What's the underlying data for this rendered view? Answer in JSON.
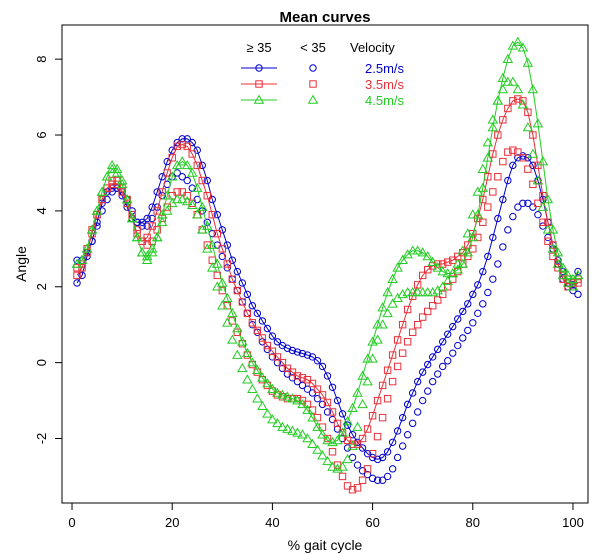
{
  "chart_data": {
    "type": "line",
    "title": "Mean curves",
    "xlabel": "% gait cycle",
    "ylabel": "Angle",
    "xlim": [
      -2,
      103
    ],
    "ylim": [
      -3.7,
      8.9
    ],
    "x_ticks": [
      0,
      20,
      40,
      60,
      80,
      100
    ],
    "x_tick_labels": [
      "0",
      "20",
      "40",
      "60",
      "80",
      "100"
    ],
    "y_ticks": [
      -2,
      0,
      2,
      4,
      6,
      8
    ],
    "y_tick_labels": [
      "-2",
      "0",
      "2",
      "4",
      "6",
      "8"
    ],
    "legend": {
      "placement": "top-center",
      "header": [
        "≥ 35",
        "< 35",
        "Velocity"
      ],
      "labels": [
        "2.5m/s",
        "3.5m/s",
        "4.5m/s"
      ]
    },
    "colors": {
      "v25": "#0000cc",
      "v35": "#e8303a",
      "v45": "#22cc22"
    },
    "x": [
      1,
      2,
      3,
      4,
      5,
      6,
      7,
      8,
      9,
      10,
      11,
      12,
      13,
      14,
      15,
      16,
      17,
      18,
      19,
      20,
      21,
      22,
      23,
      24,
      25,
      26,
      27,
      28,
      29,
      30,
      31,
      32,
      33,
      34,
      35,
      36,
      37,
      38,
      39,
      40,
      41,
      42,
      43,
      44,
      45,
      46,
      47,
      48,
      49,
      50,
      51,
      52,
      53,
      54,
      55,
      56,
      57,
      58,
      59,
      60,
      61,
      62,
      63,
      64,
      65,
      66,
      67,
      68,
      69,
      70,
      71,
      72,
      73,
      74,
      75,
      76,
      77,
      78,
      79,
      80,
      81,
      82,
      83,
      84,
      85,
      86,
      87,
      88,
      89,
      90,
      91,
      92,
      93,
      94,
      95,
      96,
      97,
      98,
      99,
      100,
      101
    ],
    "series": [
      {
        "velocity": "2.5m/s",
        "group": "≥ 35",
        "marker": "circle",
        "connected": true,
        "color": "#0000cc",
        "values": [
          2.1,
          2.3,
          2.8,
          3.2,
          3.7,
          4.2,
          4.5,
          4.6,
          4.6,
          4.4,
          4.1,
          3.8,
          3.7,
          3.7,
          3.8,
          4.1,
          4.5,
          4.9,
          5.3,
          5.6,
          5.8,
          5.9,
          5.9,
          5.8,
          5.6,
          5.2,
          4.8,
          4.3,
          3.9,
          3.5,
          3.1,
          2.7,
          2.4,
          2.1,
          1.8,
          1.5,
          1.3,
          1.1,
          0.9,
          0.7,
          0.55,
          0.45,
          0.38,
          0.32,
          0.28,
          0.24,
          0.2,
          0.15,
          0.05,
          -0.1,
          -0.35,
          -0.65,
          -1.0,
          -1.35,
          -1.65,
          -1.9,
          -2.1,
          -2.25,
          -2.4,
          -2.5,
          -2.55,
          -2.5,
          -2.35,
          -2.1,
          -1.8,
          -1.45,
          -1.1,
          -0.8,
          -0.5,
          -0.25,
          -0.05,
          0.15,
          0.35,
          0.55,
          0.75,
          0.95,
          1.15,
          1.35,
          1.55,
          1.8,
          2.05,
          2.4,
          2.8,
          3.3,
          3.8,
          4.3,
          4.8,
          5.2,
          5.4,
          5.45,
          5.4,
          5.2,
          4.8,
          4.3,
          3.7,
          3.1,
          2.6,
          2.2,
          2.0,
          2.05,
          2.4
        ]
      },
      {
        "velocity": "2.5m/s",
        "group": "< 35",
        "marker": "circle",
        "connected": false,
        "color": "#0000cc",
        "values": [
          2.7,
          2.7,
          2.9,
          3.2,
          3.6,
          4.0,
          4.3,
          4.5,
          4.6,
          4.5,
          4.3,
          4.0,
          3.7,
          3.6,
          3.6,
          3.8,
          4.1,
          4.4,
          4.7,
          4.9,
          5.0,
          4.9,
          4.8,
          4.6,
          4.3,
          4.0,
          3.7,
          3.4,
          3.1,
          2.8,
          2.5,
          2.2,
          1.9,
          1.6,
          1.3,
          1.0,
          0.8,
          0.55,
          0.35,
          0.15,
          0.0,
          -0.15,
          -0.3,
          -0.4,
          -0.5,
          -0.6,
          -0.7,
          -0.8,
          -0.95,
          -1.1,
          -1.3,
          -1.5,
          -1.75,
          -2.0,
          -2.25,
          -2.5,
          -2.7,
          -2.85,
          -2.95,
          -3.05,
          -3.1,
          -3.1,
          -3.0,
          -2.8,
          -2.5,
          -2.2,
          -1.9,
          -1.6,
          -1.3,
          -1.0,
          -0.75,
          -0.5,
          -0.3,
          -0.1,
          0.05,
          0.25,
          0.45,
          0.65,
          0.85,
          1.05,
          1.3,
          1.55,
          1.85,
          2.2,
          2.6,
          3.05,
          3.5,
          3.85,
          4.1,
          4.2,
          4.2,
          4.1,
          3.9,
          3.6,
          3.3,
          3.0,
          2.7,
          2.4,
          2.1,
          1.9,
          1.8
        ]
      },
      {
        "velocity": "3.5m/s",
        "group": "≥ 35",
        "marker": "square",
        "connected": true,
        "color": "#e8303a",
        "values": [
          2.3,
          2.5,
          2.9,
          3.4,
          3.9,
          4.3,
          4.6,
          4.7,
          4.7,
          4.5,
          4.2,
          3.8,
          3.4,
          3.2,
          3.3,
          3.6,
          4.0,
          4.5,
          5.0,
          5.4,
          5.7,
          5.75,
          5.7,
          5.5,
          5.2,
          4.8,
          4.4,
          3.9,
          3.4,
          3.0,
          2.6,
          2.2,
          1.9,
          1.6,
          1.3,
          1.05,
          0.85,
          0.65,
          0.45,
          0.3,
          0.15,
          0.0,
          -0.15,
          -0.25,
          -0.35,
          -0.4,
          -0.45,
          -0.55,
          -0.7,
          -0.85,
          -1.05,
          -1.3,
          -1.6,
          -1.85,
          -2.05,
          -2.15,
          -2.15,
          -2.0,
          -1.75,
          -1.4,
          -1.0,
          -0.6,
          -0.2,
          0.2,
          0.6,
          1.0,
          1.4,
          1.75,
          2.05,
          2.3,
          2.45,
          2.55,
          2.6,
          2.6,
          2.65,
          2.7,
          2.8,
          2.9,
          3.1,
          3.4,
          3.8,
          4.3,
          4.9,
          5.5,
          6.0,
          6.4,
          6.7,
          6.9,
          6.95,
          6.9,
          6.6,
          6.0,
          5.2,
          4.4,
          3.7,
          3.1,
          2.6,
          2.2,
          2.0,
          2.0,
          2.1
        ]
      },
      {
        "velocity": "3.5m/s",
        "group": "< 35",
        "marker": "square",
        "connected": false,
        "color": "#e8303a",
        "values": [
          2.5,
          2.6,
          3.0,
          3.5,
          3.9,
          4.3,
          4.6,
          4.8,
          4.8,
          4.6,
          4.3,
          3.9,
          3.5,
          3.2,
          3.1,
          3.2,
          3.5,
          3.8,
          4.1,
          4.4,
          4.5,
          4.5,
          4.4,
          4.2,
          3.9,
          3.5,
          3.1,
          2.7,
          2.3,
          1.9,
          1.5,
          1.1,
          0.8,
          0.5,
          0.2,
          -0.05,
          -0.25,
          -0.45,
          -0.6,
          -0.75,
          -0.85,
          -0.9,
          -0.95,
          -0.95,
          -0.95,
          -1.0,
          -1.1,
          -1.25,
          -1.45,
          -1.7,
          -2.0,
          -2.35,
          -2.7,
          -3.0,
          -3.25,
          -3.35,
          -3.3,
          -3.1,
          -2.8,
          -2.4,
          -1.95,
          -1.45,
          -0.95,
          -0.5,
          -0.1,
          0.25,
          0.55,
          0.8,
          1.0,
          1.2,
          1.35,
          1.5,
          1.65,
          1.8,
          2.0,
          2.2,
          2.4,
          2.6,
          2.8,
          3.0,
          3.3,
          3.7,
          4.1,
          4.5,
          4.9,
          5.3,
          5.55,
          5.6,
          5.55,
          5.4,
          5.1,
          4.7,
          4.2,
          3.7,
          3.2,
          2.8,
          2.5,
          2.3,
          2.2,
          2.1,
          2.2
        ]
      },
      {
        "velocity": "4.5m/s",
        "group": "≥ 35",
        "marker": "triangle",
        "connected": true,
        "color": "#22cc22",
        "values": [
          2.6,
          2.7,
          3.0,
          3.5,
          4.0,
          4.5,
          4.9,
          5.1,
          5.0,
          4.7,
          4.3,
          3.8,
          3.3,
          2.9,
          2.7,
          2.9,
          3.3,
          3.9,
          4.4,
          4.9,
          5.2,
          5.3,
          5.2,
          5.0,
          4.6,
          4.1,
          3.6,
          3.1,
          2.6,
          2.1,
          1.7,
          1.3,
          0.9,
          0.55,
          0.25,
          0.0,
          -0.2,
          -0.4,
          -0.55,
          -0.7,
          -0.8,
          -0.85,
          -0.9,
          -0.95,
          -1.0,
          -1.1,
          -1.25,
          -1.45,
          -1.7,
          -1.9,
          -2.05,
          -2.1,
          -2.05,
          -1.85,
          -1.55,
          -1.2,
          -0.8,
          -0.35,
          0.1,
          0.55,
          1.0,
          1.45,
          1.85,
          2.2,
          2.5,
          2.7,
          2.85,
          2.95,
          2.95,
          2.9,
          2.8,
          2.65,
          2.5,
          2.4,
          2.35,
          2.35,
          2.45,
          2.6,
          2.9,
          3.3,
          3.9,
          4.6,
          5.4,
          6.2,
          6.9,
          7.5,
          8.0,
          8.35,
          8.45,
          8.3,
          7.9,
          7.2,
          6.3,
          5.3,
          4.3,
          3.5,
          2.9,
          2.5,
          2.3,
          2.2,
          2.3
        ]
      },
      {
        "velocity": "4.5m/s",
        "group": "< 35",
        "marker": "triangle",
        "connected": false,
        "color": "#22cc22",
        "values": [
          2.6,
          2.7,
          3.0,
          3.5,
          4.0,
          4.5,
          4.9,
          5.2,
          5.1,
          4.8,
          4.3,
          3.8,
          3.3,
          2.9,
          2.8,
          3.0,
          3.3,
          3.7,
          4.0,
          4.2,
          4.3,
          4.3,
          4.25,
          4.15,
          3.9,
          3.5,
          3.0,
          2.5,
          2.0,
          1.5,
          1.05,
          0.6,
          0.2,
          -0.15,
          -0.45,
          -0.7,
          -0.95,
          -1.15,
          -1.35,
          -1.5,
          -1.6,
          -1.7,
          -1.75,
          -1.8,
          -1.85,
          -1.9,
          -2.0,
          -2.15,
          -2.3,
          -2.45,
          -2.6,
          -2.75,
          -2.8,
          -2.75,
          -2.55,
          -2.2,
          -1.7,
          -1.1,
          -0.5,
          0.1,
          0.6,
          1.0,
          1.3,
          1.55,
          1.7,
          1.8,
          1.85,
          1.85,
          1.85,
          1.85,
          1.85,
          1.85,
          1.9,
          2.0,
          2.15,
          2.35,
          2.6,
          2.95,
          3.4,
          3.9,
          4.5,
          5.1,
          5.8,
          6.4,
          6.9,
          7.2,
          7.4,
          7.4,
          7.2,
          6.8,
          6.2,
          5.5,
          4.8,
          4.1,
          3.5,
          3.0,
          2.6,
          2.3,
          2.1,
          2.0,
          2.3
        ]
      }
    ]
  }
}
